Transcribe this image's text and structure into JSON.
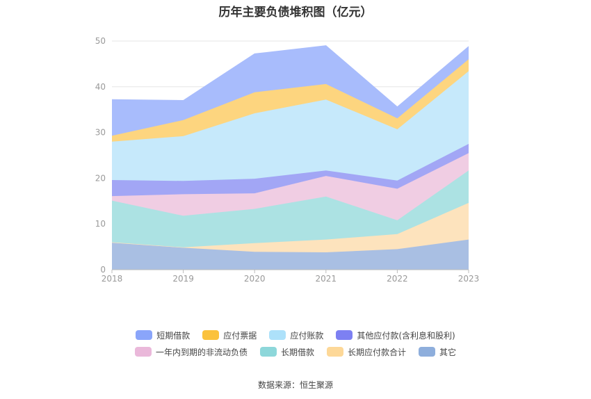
{
  "chart_data": {
    "type": "area",
    "title": "历年主要负债堆积图（亿元）",
    "categories": [
      "2018",
      "2019",
      "2020",
      "2021",
      "2022",
      "2023"
    ],
    "ylim": [
      0,
      50
    ],
    "yticks": [
      0,
      10,
      20,
      30,
      40,
      50
    ],
    "stacked": true,
    "grid": true,
    "legend_position": "bottom",
    "series": [
      {
        "name": "其它",
        "color": "#a9bfe3",
        "legend_color": "#8eaedc",
        "values": [
          5.9,
          4.8,
          3.9,
          3.8,
          4.5,
          6.6
        ]
      },
      {
        "name": "长期应付款合计",
        "color": "#fde3bd",
        "legend_color": "#fdd898",
        "values": [
          0.1,
          0.1,
          1.9,
          2.8,
          3.3,
          8.0
        ]
      },
      {
        "name": "长期借款",
        "color": "#ace2e3",
        "legend_color": "#8dd7da",
        "values": [
          9.1,
          6.9,
          7.5,
          9.4,
          3.0,
          7.1
        ]
      },
      {
        "name": "一年内到期的非流动负债",
        "color": "#f0cde3",
        "legend_color": "#eab8da",
        "values": [
          1.0,
          4.7,
          3.4,
          4.5,
          6.9,
          3.8
        ]
      },
      {
        "name": "其他应付款(含利息和股利)",
        "color": "#a2a6f5",
        "legend_color": "#7d80f2",
        "values": [
          3.5,
          2.9,
          3.2,
          1.2,
          1.8,
          2.0
        ]
      },
      {
        "name": "应付账款",
        "color": "#c6e9fb",
        "legend_color": "#ade1fa",
        "values": [
          8.4,
          9.8,
          14.3,
          15.5,
          11.2,
          15.9
        ]
      },
      {
        "name": "应付票据",
        "color": "#fdd57f",
        "legend_color": "#fbc23d",
        "values": [
          1.3,
          3.5,
          4.6,
          3.4,
          2.4,
          2.6
        ]
      },
      {
        "name": "短期借款",
        "color": "#a8bcfc",
        "legend_color": "#8aa5fa",
        "values": [
          7.9,
          4.3,
          8.4,
          8.4,
          2.5,
          2.8
        ]
      }
    ]
  },
  "legend": {
    "row1": [
      "短期借款",
      "应付票据",
      "应付账款",
      "其他应付款(含利息和股利)"
    ],
    "row2": [
      "一年内到期的非流动负债",
      "长期借款",
      "长期应付款合计",
      "其它"
    ]
  },
  "footer": {
    "source": "数据来源：恒生聚源"
  }
}
